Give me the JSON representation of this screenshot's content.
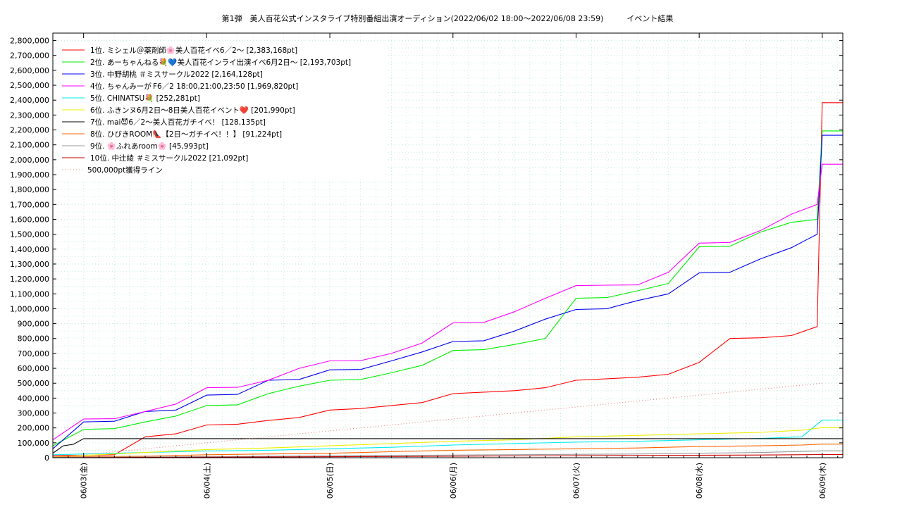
{
  "chart_data": {
    "type": "line",
    "title": "第1弾　美人百花公式インスタライブ特別番組出演オーディション(2022/06/02 18:00〜2022/06/08 23:59)　　　イベント結果",
    "xlabel": "",
    "ylabel": "",
    "ylim": [
      0,
      2850000
    ],
    "xlim": [
      "2022-06-02 18:00",
      "2022-06-09 04:00"
    ],
    "grid": true,
    "legend_position": "top-left",
    "x_ticks": [
      {
        "x": "2022-06-03",
        "label": "06/03(金)"
      },
      {
        "x": "2022-06-04",
        "label": "06/04(土)"
      },
      {
        "x": "2022-06-05",
        "label": "06/05(日)"
      },
      {
        "x": "2022-06-06",
        "label": "06/06(月)"
      },
      {
        "x": "2022-06-07",
        "label": "06/07(火)"
      },
      {
        "x": "2022-06-08",
        "label": "06/08(水)"
      },
      {
        "x": "2022-06-09",
        "label": "06/09(木)"
      }
    ],
    "y_ticks": [
      {
        "value": 0,
        "label": "0"
      },
      {
        "value": 100000,
        "label": "100,000"
      },
      {
        "value": 200000,
        "label": "200,000"
      },
      {
        "value": 300000,
        "label": "300,000"
      },
      {
        "value": 400000,
        "label": "400,000"
      },
      {
        "value": 500000,
        "label": "500,000"
      },
      {
        "value": 600000,
        "label": "600,000"
      },
      {
        "value": 700000,
        "label": "700,000"
      },
      {
        "value": 800000,
        "label": "800,000"
      },
      {
        "value": 900000,
        "label": "900,000"
      },
      {
        "value": 1000000,
        "label": "1,000,000"
      },
      {
        "value": 1100000,
        "label": "1,100,000"
      },
      {
        "value": 1200000,
        "label": "1,200,000"
      },
      {
        "value": 1300000,
        "label": "1,300,000"
      },
      {
        "value": 1400000,
        "label": "1,400,000"
      },
      {
        "value": 1500000,
        "label": "1,500,000"
      },
      {
        "value": 1600000,
        "label": "1,600,000"
      },
      {
        "value": 1700000,
        "label": "1,700,000"
      },
      {
        "value": 1800000,
        "label": "1,800,000"
      },
      {
        "value": 1900000,
        "label": "1,900,000"
      },
      {
        "value": 2000000,
        "label": "2,000,000"
      },
      {
        "value": 2100000,
        "label": "2,100,000"
      },
      {
        "value": 2200000,
        "label": "2,200,000"
      },
      {
        "value": 2300000,
        "label": "2,300,000"
      },
      {
        "value": 2400000,
        "label": "2,400,000"
      },
      {
        "value": 2500000,
        "label": "2,500,000"
      },
      {
        "value": 2600000,
        "label": "2,600,000"
      },
      {
        "value": 2700000,
        "label": "2,700,000"
      },
      {
        "value": 2800000,
        "label": "2,800,000"
      }
    ],
    "series": [
      {
        "name": "1位. ミシェル＠薬剤師🌸美人百花イベ6／2〜 [2,383,168pt]",
        "color": "#ff0000",
        "dash": "",
        "x": [
          "2022-06-02 18:00",
          "2022-06-03 00:00",
          "2022-06-03 06:00",
          "2022-06-03 12:00",
          "2022-06-03 18:00",
          "2022-06-04 00:00",
          "2022-06-04 06:00",
          "2022-06-04 12:00",
          "2022-06-04 18:00",
          "2022-06-05 00:00",
          "2022-06-05 06:00",
          "2022-06-05 12:00",
          "2022-06-05 18:00",
          "2022-06-06 00:00",
          "2022-06-06 06:00",
          "2022-06-06 12:00",
          "2022-06-06 18:00",
          "2022-06-07 00:00",
          "2022-06-07 06:00",
          "2022-06-07 12:00",
          "2022-06-07 18:00",
          "2022-06-08 00:00",
          "2022-06-08 06:00",
          "2022-06-08 12:00",
          "2022-06-08 18:00",
          "2022-06-08 23:00",
          "2022-06-08 23:59",
          "2022-06-09 04:00"
        ],
        "values": [
          15000,
          15000,
          20000,
          140000,
          160000,
          220000,
          225000,
          250000,
          270000,
          320000,
          330000,
          350000,
          370000,
          430000,
          440000,
          450000,
          470000,
          520000,
          530000,
          540000,
          560000,
          640000,
          800000,
          805000,
          820000,
          880000,
          2383168,
          2383168
        ]
      },
      {
        "name": "2位. あーちゃんねる💐💙美人百花インライ出演イベ6月2日〜 [2,193,703pt]",
        "color": "#00ee00",
        "dash": "",
        "x": [
          "2022-06-02 18:00",
          "2022-06-03 00:00",
          "2022-06-03 06:00",
          "2022-06-03 12:00",
          "2022-06-03 18:00",
          "2022-06-04 00:00",
          "2022-06-04 06:00",
          "2022-06-04 12:00",
          "2022-06-04 18:00",
          "2022-06-05 00:00",
          "2022-06-05 06:00",
          "2022-06-05 12:00",
          "2022-06-05 18:00",
          "2022-06-06 00:00",
          "2022-06-06 06:00",
          "2022-06-06 12:00",
          "2022-06-06 18:00",
          "2022-06-07 00:00",
          "2022-06-07 06:00",
          "2022-06-07 12:00",
          "2022-06-07 18:00",
          "2022-06-08 00:00",
          "2022-06-08 06:00",
          "2022-06-08 12:00",
          "2022-06-08 18:00",
          "2022-06-08 23:00",
          "2022-06-08 23:59",
          "2022-06-09 04:00"
        ],
        "values": [
          80000,
          190000,
          195000,
          240000,
          280000,
          350000,
          355000,
          430000,
          480000,
          520000,
          525000,
          570000,
          620000,
          720000,
          725000,
          760000,
          800000,
          1070000,
          1075000,
          1120000,
          1170000,
          1415000,
          1420000,
          1515000,
          1580000,
          1600000,
          2193703,
          2193703
        ]
      },
      {
        "name": "3位. 中野胡桃 ＃ミスサークル2022 [2,164,128pt]",
        "color": "#0000ee",
        "dash": "",
        "x": [
          "2022-06-02 18:00",
          "2022-06-03 00:00",
          "2022-06-03 06:00",
          "2022-06-03 12:00",
          "2022-06-03 18:00",
          "2022-06-04 00:00",
          "2022-06-04 06:00",
          "2022-06-04 12:00",
          "2022-06-04 18:00",
          "2022-06-05 00:00",
          "2022-06-05 06:00",
          "2022-06-05 12:00",
          "2022-06-05 18:00",
          "2022-06-06 00:00",
          "2022-06-06 06:00",
          "2022-06-06 12:00",
          "2022-06-06 18:00",
          "2022-06-07 00:00",
          "2022-06-07 06:00",
          "2022-06-07 12:00",
          "2022-06-07 18:00",
          "2022-06-08 00:00",
          "2022-06-08 06:00",
          "2022-06-08 12:00",
          "2022-06-08 18:00",
          "2022-06-08 23:00",
          "2022-06-08 23:59",
          "2022-06-09 04:00"
        ],
        "values": [
          60000,
          240000,
          245000,
          310000,
          320000,
          420000,
          425000,
          520000,
          525000,
          590000,
          592000,
          650000,
          710000,
          780000,
          785000,
          850000,
          930000,
          995000,
          1000000,
          1055000,
          1100000,
          1240000,
          1245000,
          1335000,
          1410000,
          1500000,
          2164128,
          2164128
        ]
      },
      {
        "name": "4位. ちゃんみーが F6／2 18:00,21:00,23:50 [1,969,820pt]",
        "color": "#ff00ff",
        "dash": "",
        "x": [
          "2022-06-02 18:00",
          "2022-06-03 00:00",
          "2022-06-03 06:00",
          "2022-06-03 12:00",
          "2022-06-03 18:00",
          "2022-06-04 00:00",
          "2022-06-04 06:00",
          "2022-06-04 12:00",
          "2022-06-04 18:00",
          "2022-06-05 00:00",
          "2022-06-05 06:00",
          "2022-06-05 12:00",
          "2022-06-05 18:00",
          "2022-06-06 00:00",
          "2022-06-06 06:00",
          "2022-06-06 12:00",
          "2022-06-06 18:00",
          "2022-06-07 00:00",
          "2022-06-07 06:00",
          "2022-06-07 12:00",
          "2022-06-07 18:00",
          "2022-06-08 00:00",
          "2022-06-08 06:00",
          "2022-06-08 12:00",
          "2022-06-08 18:00",
          "2022-06-08 23:00",
          "2022-06-08 23:59",
          "2022-06-09 04:00"
        ],
        "values": [
          120000,
          260000,
          262000,
          310000,
          360000,
          470000,
          472000,
          520000,
          600000,
          650000,
          652000,
          700000,
          770000,
          905000,
          908000,
          980000,
          1070000,
          1155000,
          1158000,
          1160000,
          1245000,
          1440000,
          1445000,
          1525000,
          1635000,
          1700000,
          1969820,
          1969820
        ]
      },
      {
        "name": "5位. CHINATSU💐 [252,281pt]",
        "color": "#00eeee",
        "dash": "",
        "x": [
          "2022-06-02 18:00",
          "2022-06-03 00:00",
          "2022-06-03 12:00",
          "2022-06-04 00:00",
          "2022-06-04 12:00",
          "2022-06-05 00:00",
          "2022-06-05 12:00",
          "2022-06-06 00:00",
          "2022-06-06 12:00",
          "2022-06-07 00:00",
          "2022-06-07 12:00",
          "2022-06-08 00:00",
          "2022-06-08 12:00",
          "2022-06-08 20:00",
          "2022-06-08 23:59",
          "2022-06-09 04:00"
        ],
        "values": [
          20000,
          25000,
          35000,
          45000,
          50000,
          60000,
          70000,
          85000,
          95000,
          105000,
          110000,
          120000,
          130000,
          140000,
          252281,
          252281
        ]
      },
      {
        "name": "6位. ふきンヌ6月2日〜8日美人百花イベント❤️ [201,990pt]",
        "color": "#eeee00",
        "dash": "",
        "x": [
          "2022-06-02 18:00",
          "2022-06-03 00:00",
          "2022-06-03 12:00",
          "2022-06-04 00:00",
          "2022-06-04 12:00",
          "2022-06-05 00:00",
          "2022-06-05 12:00",
          "2022-06-06 00:00",
          "2022-06-06 12:00",
          "2022-06-07 00:00",
          "2022-06-07 12:00",
          "2022-06-08 00:00",
          "2022-06-08 12:00",
          "2022-06-08 20:00",
          "2022-06-08 23:59",
          "2022-06-09 04:00"
        ],
        "values": [
          5000,
          15000,
          35000,
          55000,
          65000,
          80000,
          95000,
          110000,
          120000,
          140000,
          150000,
          160000,
          170000,
          185000,
          201990,
          201990
        ]
      },
      {
        "name": "7位. mai😈6／2〜美人百花ガチイベ！ [128,135pt]",
        "color": "#000000",
        "dash": "",
        "x": [
          "2022-06-02 18:00",
          "2022-06-02 20:00",
          "2022-06-02 22:00",
          "2022-06-03 00:00",
          "2022-06-09 04:00"
        ],
        "values": [
          30000,
          80000,
          90000,
          128135,
          128135
        ]
      },
      {
        "name": "8位. ひびきROOM👠【2日〜ガチイベ！！】 [91,224pt]",
        "color": "#ff6600",
        "dash": "",
        "x": [
          "2022-06-02 18:00",
          "2022-06-03 12:00",
          "2022-06-04 00:00",
          "2022-06-04 12:00",
          "2022-06-05 00:00",
          "2022-06-05 12:00",
          "2022-06-06 00:00",
          "2022-06-06 12:00",
          "2022-06-07 00:00",
          "2022-06-07 12:00",
          "2022-06-08 00:00",
          "2022-06-08 12:00",
          "2022-06-08 20:00",
          "2022-06-08 23:59",
          "2022-06-09 04:00"
        ],
        "values": [
          5000,
          10000,
          20000,
          25000,
          30000,
          40000,
          50000,
          55000,
          60000,
          65000,
          75000,
          80000,
          85000,
          91224,
          91224
        ]
      },
      {
        "name": "9位. 🌸ふれあroom🌸 [45,993pt]",
        "color": "#999999",
        "dash": "",
        "x": [
          "2022-06-02 18:00",
          "2022-06-03 12:00",
          "2022-06-04 12:00",
          "2022-06-05 12:00",
          "2022-06-06 12:00",
          "2022-06-07 12:00",
          "2022-06-08 12:00",
          "2022-06-08 23:59",
          "2022-06-09 04:00"
        ],
        "values": [
          2000,
          5000,
          10000,
          15000,
          20000,
          25000,
          35000,
          45993,
          45993
        ]
      },
      {
        "name": "10位. 中辻綾 ＃ミスサークル2022 [21,092pt]",
        "color": "#cc0000",
        "dash": "",
        "x": [
          "2022-06-02 18:00",
          "2022-06-03 12:00",
          "2022-06-04 12:00",
          "2022-06-05 12:00",
          "2022-06-06 12:00",
          "2022-06-07 12:00",
          "2022-06-08 12:00",
          "2022-06-08 23:59",
          "2022-06-09 04:00"
        ],
        "values": [
          0,
          2000,
          5000,
          8000,
          12000,
          15000,
          18000,
          21092,
          21092
        ]
      },
      {
        "name": "500,000pt獲得ライン",
        "color": "#e08080",
        "dash": "1,3",
        "x": [
          "2022-06-02 18:00",
          "2022-06-08 23:59"
        ],
        "values": [
          0,
          500000
        ]
      }
    ]
  }
}
